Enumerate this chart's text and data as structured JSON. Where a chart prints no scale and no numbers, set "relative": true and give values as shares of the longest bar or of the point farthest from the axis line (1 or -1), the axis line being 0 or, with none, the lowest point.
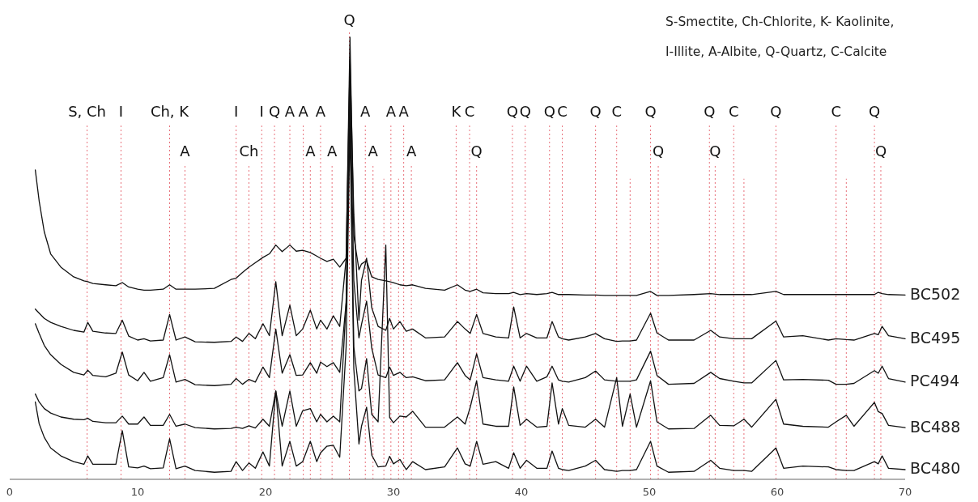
{
  "chart_data": {
    "type": "line",
    "relative": true,
    "legend": false,
    "line_style": "solid",
    "marker": "none",
    "xlim": [
      0,
      70
    ],
    "xticks": [
      0,
      10,
      20,
      30,
      40,
      50,
      60,
      70
    ],
    "x": [
      2,
      2.3,
      2.7,
      3.2,
      4,
      5,
      5.8,
      6.1,
      6.5,
      7.5,
      8.3,
      8.8,
      9.3,
      10,
      10.5,
      11,
      12,
      12.5,
      13,
      13.7,
      14.5,
      16,
      17.3,
      17.7,
      18.2,
      18.7,
      19.2,
      19.8,
      20.3,
      20.8,
      21.3,
      21.9,
      22.4,
      22.9,
      23.5,
      24.0,
      24.3,
      24.8,
      25.3,
      25.8,
      26.3,
      26.6,
      26.9,
      27.3,
      27.5,
      27.9,
      28.3,
      28.8,
      29.4,
      29.7,
      30.0,
      30.5,
      31.0,
      31.5,
      32.5,
      34.0,
      35.0,
      35.6,
      36.0,
      36.5,
      37.0,
      38.0,
      39.0,
      39.4,
      39.9,
      40.4,
      41.2,
      42.0,
      42.4,
      42.9,
      43.2,
      43.7,
      45.0,
      45.8,
      46.5,
      47.45,
      47.9,
      48.5,
      49.0,
      50.1,
      50.6,
      51.5,
      53.5,
      54.8,
      55.5,
      56.6,
      57.4,
      58.0,
      59.9,
      60.5,
      62.0,
      64.0,
      64.6,
      65.4,
      66.0,
      67.6,
      67.9,
      68.2,
      68.7,
      70
    ],
    "series": [
      {
        "name": "BC502",
        "color": "#111111",
        "values": [
          0.7,
          0.63,
          0.56,
          0.51,
          0.48,
          0.458,
          0.449,
          0.447,
          0.443,
          0.44,
          0.438,
          0.445,
          0.435,
          0.43,
          0.428,
          0.428,
          0.43,
          0.44,
          0.43,
          0.43,
          0.43,
          0.432,
          0.452,
          0.455,
          0.468,
          0.48,
          0.49,
          0.502,
          0.51,
          0.53,
          0.515,
          0.53,
          0.516,
          0.518,
          0.513,
          0.505,
          0.5,
          0.493,
          0.498,
          0.48,
          0.5,
          1.0,
          0.55,
          0.474,
          0.487,
          0.495,
          0.458,
          0.452,
          0.449,
          0.447,
          0.445,
          0.44,
          0.438,
          0.44,
          0.432,
          0.428,
          0.44,
          0.428,
          0.425,
          0.43,
          0.422,
          0.42,
          0.42,
          0.423,
          0.418,
          0.42,
          0.418,
          0.42,
          0.423,
          0.418,
          0.418,
          0.418,
          0.417,
          0.417,
          0.416,
          0.416,
          0.416,
          0.416,
          0.416,
          0.425,
          0.416,
          0.416,
          0.418,
          0.42,
          0.418,
          0.418,
          0.418,
          0.418,
          0.425,
          0.418,
          0.418,
          0.418,
          0.418,
          0.418,
          0.418,
          0.418,
          0.423,
          0.42,
          0.418,
          0.417
        ]
      },
      {
        "name": "BC495",
        "color": "#111111",
        "values": [
          0.385,
          0.376,
          0.364,
          0.355,
          0.346,
          0.337,
          0.333,
          0.355,
          0.335,
          0.331,
          0.33,
          0.36,
          0.324,
          0.315,
          0.318,
          0.313,
          0.315,
          0.373,
          0.315,
          0.322,
          0.311,
          0.31,
          0.312,
          0.322,
          0.312,
          0.33,
          0.318,
          0.352,
          0.325,
          0.447,
          0.325,
          0.394,
          0.325,
          0.34,
          0.383,
          0.34,
          0.36,
          0.34,
          0.37,
          0.346,
          0.5,
          0.95,
          0.6,
          0.36,
          0.45,
          0.5,
          0.388,
          0.346,
          0.337,
          0.364,
          0.34,
          0.357,
          0.335,
          0.34,
          0.32,
          0.322,
          0.357,
          0.34,
          0.33,
          0.373,
          0.33,
          0.322,
          0.32,
          0.39,
          0.32,
          0.33,
          0.32,
          0.32,
          0.357,
          0.322,
          0.318,
          0.315,
          0.322,
          0.33,
          0.318,
          0.312,
          0.313,
          0.313,
          0.315,
          0.376,
          0.331,
          0.315,
          0.315,
          0.337,
          0.322,
          0.318,
          0.318,
          0.318,
          0.358,
          0.322,
          0.325,
          0.315,
          0.318,
          0.316,
          0.315,
          0.33,
          0.327,
          0.346,
          0.325,
          0.318
        ]
      },
      {
        "name": "PC494",
        "color": "#111111",
        "values": [
          0.352,
          0.33,
          0.303,
          0.282,
          0.26,
          0.242,
          0.236,
          0.247,
          0.235,
          0.232,
          0.24,
          0.288,
          0.236,
          0.223,
          0.242,
          0.222,
          0.23,
          0.282,
          0.22,
          0.226,
          0.214,
          0.212,
          0.215,
          0.228,
          0.215,
          0.226,
          0.22,
          0.254,
          0.23,
          0.34,
          0.24,
          0.282,
          0.235,
          0.236,
          0.264,
          0.24,
          0.265,
          0.255,
          0.264,
          0.242,
          0.4,
          0.9,
          0.45,
          0.32,
          0.35,
          0.403,
          0.297,
          0.236,
          0.23,
          0.254,
          0.235,
          0.242,
          0.23,
          0.232,
          0.223,
          0.225,
          0.264,
          0.235,
          0.225,
          0.284,
          0.23,
          0.225,
          0.222,
          0.256,
          0.222,
          0.256,
          0.222,
          0.232,
          0.256,
          0.225,
          0.222,
          0.22,
          0.23,
          0.245,
          0.225,
          0.222,
          0.222,
          0.222,
          0.225,
          0.29,
          0.235,
          0.215,
          0.217,
          0.242,
          0.228,
          0.222,
          0.218,
          0.218,
          0.269,
          0.225,
          0.226,
          0.224,
          0.215,
          0.215,
          0.217,
          0.246,
          0.24,
          0.256,
          0.228,
          0.22
        ]
      },
      {
        "name": "BC488",
        "color": "#111111",
        "values": [
          0.193,
          0.175,
          0.16,
          0.15,
          0.141,
          0.136,
          0.135,
          0.138,
          0.131,
          0.128,
          0.128,
          0.143,
          0.125,
          0.125,
          0.141,
          0.122,
          0.122,
          0.147,
          0.12,
          0.125,
          0.117,
          0.114,
          0.115,
          0.118,
          0.115,
          0.121,
          0.116,
          0.136,
          0.12,
          0.2,
          0.12,
          0.2,
          0.12,
          0.155,
          0.16,
          0.13,
          0.147,
          0.13,
          0.143,
          0.13,
          0.4,
          0.85,
          0.3,
          0.2,
          0.205,
          0.273,
          0.147,
          0.13,
          0.53,
          0.14,
          0.128,
          0.143,
          0.141,
          0.154,
          0.118,
          0.118,
          0.141,
          0.125,
          0.163,
          0.223,
          0.125,
          0.12,
          0.12,
          0.209,
          0.122,
          0.136,
          0.118,
          0.12,
          0.218,
          0.125,
          0.16,
          0.122,
          0.118,
          0.136,
          0.118,
          0.23,
          0.12,
          0.193,
          0.118,
          0.223,
          0.13,
          0.114,
          0.115,
          0.145,
          0.122,
          0.121,
          0.136,
          0.118,
          0.181,
          0.125,
          0.12,
          0.118,
          0.13,
          0.145,
          0.12,
          0.174,
          0.153,
          0.149,
          0.122,
          0.117
        ]
      },
      {
        "name": "BC480",
        "color": "#111111",
        "values": [
          0.175,
          0.126,
          0.095,
          0.071,
          0.053,
          0.04,
          0.034,
          0.053,
          0.034,
          0.034,
          0.034,
          0.11,
          0.028,
          0.026,
          0.03,
          0.024,
          0.026,
          0.092,
          0.024,
          0.03,
          0.02,
          0.016,
          0.018,
          0.04,
          0.02,
          0.037,
          0.025,
          0.062,
          0.03,
          0.2,
          0.03,
          0.086,
          0.03,
          0.04,
          0.086,
          0.04,
          0.06,
          0.075,
          0.077,
          0.05,
          0.3,
          0.8,
          0.25,
          0.08,
          0.12,
          0.163,
          0.055,
          0.028,
          0.03,
          0.052,
          0.035,
          0.045,
          0.022,
          0.04,
          0.022,
          0.028,
          0.071,
          0.035,
          0.03,
          0.086,
          0.034,
          0.04,
          0.025,
          0.06,
          0.025,
          0.043,
          0.025,
          0.025,
          0.064,
          0.025,
          0.022,
          0.02,
          0.03,
          0.043,
          0.022,
          0.018,
          0.02,
          0.02,
          0.022,
          0.086,
          0.03,
          0.016,
          0.018,
          0.043,
          0.025,
          0.02,
          0.02,
          0.018,
          0.071,
          0.025,
          0.03,
          0.028,
          0.022,
          0.02,
          0.02,
          0.04,
          0.035,
          0.053,
          0.025,
          0.022
        ]
      }
    ],
    "ref_lines": [
      {
        "axis": "x",
        "value": 6.05,
        "label": "S, Ch",
        "color": "#e8707a",
        "line_style": "dotted"
      },
      {
        "axis": "x",
        "value": 8.7,
        "label": "I",
        "color": "#e8707a",
        "line_style": "dotted"
      },
      {
        "axis": "x",
        "value": 12.5,
        "label": "Ch, K",
        "color": "#e8707a",
        "line_style": "dotted"
      },
      {
        "axis": "x",
        "value": 13.7,
        "label": "A",
        "color": "#e8707a",
        "line_style": "dotted"
      },
      {
        "axis": "x",
        "value": 17.7,
        "label": "I",
        "color": "#e8707a",
        "line_style": "dotted"
      },
      {
        "axis": "x",
        "value": 18.7,
        "label": "Ch",
        "color": "#e8707a",
        "line_style": "dotted"
      },
      {
        "axis": "x",
        "value": 19.7,
        "label": "I",
        "color": "#e8707a",
        "line_style": "dotted"
      },
      {
        "axis": "x",
        "value": 20.7,
        "label": "Q",
        "color": "#e8707a",
        "line_style": "dotted"
      },
      {
        "axis": "x",
        "value": 21.9,
        "label": "A",
        "color": "#e8707a",
        "line_style": "dotted"
      },
      {
        "axis": "x",
        "value": 22.95,
        "label": "A",
        "color": "#e8707a",
        "line_style": "dotted"
      },
      {
        "axis": "x",
        "value": 23.5,
        "label": "A",
        "color": "#e8707a",
        "line_style": "dotted"
      },
      {
        "axis": "x",
        "value": 24.3,
        "label": "A",
        "color": "#e8707a",
        "line_style": "dotted"
      },
      {
        "axis": "x",
        "value": 25.2,
        "label": "A",
        "color": "#e8707a",
        "line_style": "dotted"
      },
      {
        "axis": "x",
        "value": 26.55,
        "label": "Q",
        "color": "#e8707a",
        "line_style": "dotted"
      },
      {
        "axis": "x",
        "value": 27.8,
        "label": "A",
        "color": "#e8707a",
        "line_style": "dotted"
      },
      {
        "axis": "x",
        "value": 28.4,
        "label": "A",
        "color": "#e8707a",
        "line_style": "dotted"
      },
      {
        "axis": "x",
        "value": 29.25,
        "color": "#e8707a",
        "line_style": "dotted"
      },
      {
        "axis": "x",
        "value": 29.8,
        "label": "A",
        "color": "#e8707a",
        "line_style": "dotted"
      },
      {
        "axis": "x",
        "value": 30.4,
        "color": "#e8707a",
        "line_style": "dotted"
      },
      {
        "axis": "x",
        "value": 30.8,
        "label": "A",
        "color": "#e8707a",
        "line_style": "dotted"
      },
      {
        "axis": "x",
        "value": 31.4,
        "label": "A",
        "color": "#e8707a",
        "line_style": "dotted"
      },
      {
        "axis": "x",
        "value": 34.9,
        "label": "K",
        "color": "#e8707a",
        "line_style": "dotted"
      },
      {
        "axis": "x",
        "value": 35.95,
        "label": "C",
        "color": "#e8707a",
        "line_style": "dotted"
      },
      {
        "axis": "x",
        "value": 36.5,
        "label": "Q",
        "color": "#e8707a",
        "line_style": "dotted"
      },
      {
        "axis": "x",
        "value": 39.3,
        "label": "Q",
        "color": "#e8707a",
        "line_style": "dotted"
      },
      {
        "axis": "x",
        "value": 40.3,
        "label": "Q",
        "color": "#e8707a",
        "line_style": "dotted"
      },
      {
        "axis": "x",
        "value": 42.2,
        "label": "Q",
        "color": "#e8707a",
        "line_style": "dotted"
      },
      {
        "axis": "x",
        "value": 43.2,
        "label": "C",
        "color": "#e8707a",
        "line_style": "dotted"
      },
      {
        "axis": "x",
        "value": 45.8,
        "label": "Q",
        "color": "#e8707a",
        "line_style": "dotted"
      },
      {
        "axis": "x",
        "value": 47.45,
        "label": "C",
        "color": "#e8707a",
        "line_style": "dotted"
      },
      {
        "axis": "x",
        "value": 48.5,
        "color": "#e8707a",
        "line_style": "dotted"
      },
      {
        "axis": "x",
        "value": 50.1,
        "label": "Q",
        "color": "#e8707a",
        "line_style": "dotted"
      },
      {
        "axis": "x",
        "value": 50.7,
        "label": "Q",
        "color": "#e8707a",
        "line_style": "dotted"
      },
      {
        "axis": "x",
        "value": 54.7,
        "label": "Q",
        "color": "#e8707a",
        "line_style": "dotted"
      },
      {
        "axis": "x",
        "value": 55.15,
        "label": "Q",
        "color": "#e8707a",
        "line_style": "dotted"
      },
      {
        "axis": "x",
        "value": 56.6,
        "label": "C",
        "color": "#e8707a",
        "line_style": "dotted"
      },
      {
        "axis": "x",
        "value": 57.4,
        "color": "#e8707a",
        "line_style": "dotted"
      },
      {
        "axis": "x",
        "value": 59.9,
        "label": "Q",
        "color": "#e8707a",
        "line_style": "dotted"
      },
      {
        "axis": "x",
        "value": 64.6,
        "label": "C",
        "color": "#e8707a",
        "line_style": "dotted"
      },
      {
        "axis": "x",
        "value": 65.4,
        "color": "#e8707a",
        "line_style": "dotted"
      },
      {
        "axis": "x",
        "value": 67.6,
        "label": "Q",
        "color": "#e8707a",
        "line_style": "dotted"
      },
      {
        "axis": "x",
        "value": 68.1,
        "label": "Q",
        "color": "#e8707a",
        "line_style": "dotted"
      }
    ],
    "annotations": [
      "S-Smectite, Ch-Chlorite, K- Kaolinite,",
      "I-Illite, A-Albite, Q-Quartz, C-Calcite"
    ]
  }
}
